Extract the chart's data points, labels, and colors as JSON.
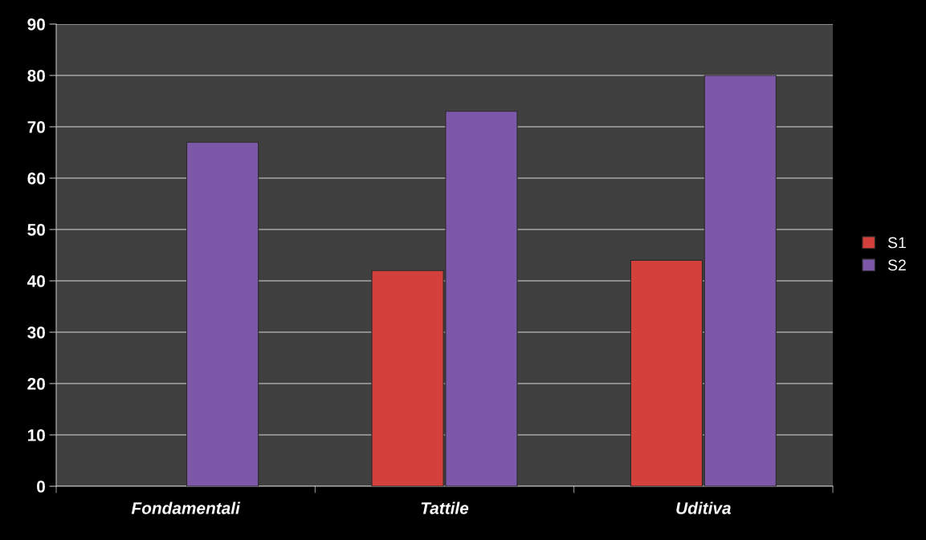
{
  "chart_data": {
    "type": "bar",
    "categories": [
      "Fondamentali",
      "Tattile",
      "Uditiva"
    ],
    "series": [
      {
        "name": "S1",
        "color": "#d4403b",
        "values": [
          null,
          42,
          44
        ]
      },
      {
        "name": "S2",
        "color": "#7d58a8",
        "values": [
          67,
          73,
          80
        ]
      }
    ],
    "ylim": [
      0,
      90
    ],
    "yticks": [
      0,
      10,
      20,
      30,
      40,
      50,
      60,
      70,
      80,
      90
    ],
    "grid": "y",
    "legend": "right"
  }
}
